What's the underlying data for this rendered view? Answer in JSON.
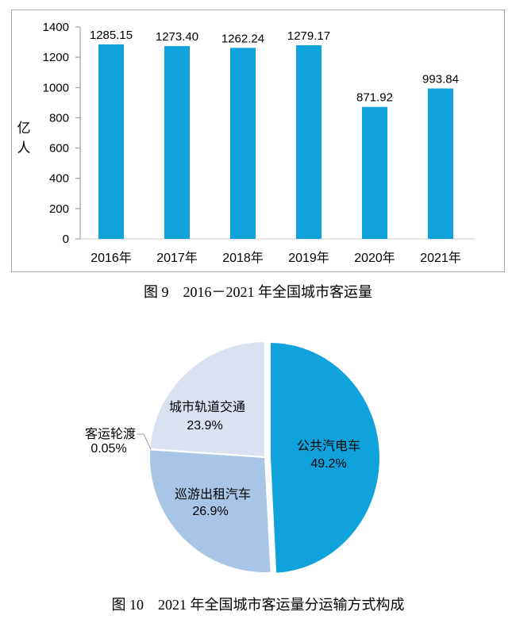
{
  "captions": {
    "figure9": "图 9　2016－2021 年全国城市客运量",
    "figure10": "图 10　2021 年全国城市客运量分运输方式构成"
  },
  "chart_data": [
    {
      "type": "bar",
      "title": "图 9 2016－2021 年全国城市客运量",
      "categories": [
        "2016年",
        "2017年",
        "2018年",
        "2019年",
        "2020年",
        "2021年"
      ],
      "values": [
        1285.15,
        1273.4,
        1262.24,
        1279.17,
        871.92,
        993.84
      ],
      "value_labels": [
        "1285.15",
        "1273.40",
        "1262.24",
        "1279.17",
        "871.92",
        "993.84"
      ],
      "ylabel": "亿人",
      "xlabel": "",
      "ylim": [
        0,
        1400
      ],
      "yticks": [
        0,
        200,
        400,
        600,
        800,
        1000,
        1200,
        1400
      ],
      "grid": false,
      "legend": "none",
      "bar_color": "#0fa2db",
      "frame_color": "#a6a6a6",
      "axis_color": "#909090",
      "baseline_color": "#c8c8c8"
    },
    {
      "type": "pie",
      "title": "图 10 2021 年全国城市客运量分运输方式构成",
      "start_angle_deg": 0,
      "direction": "clockwise",
      "slices": [
        {
          "name": "public-bus",
          "label": "公共汽电车",
          "value": 49.2,
          "pct_label": "49.2%",
          "color": "#0fa2db",
          "exploded": true,
          "label_outside": false
        },
        {
          "name": "cruising-taxi",
          "label": "巡游出租汽车",
          "value": 26.9,
          "pct_label": "26.9%",
          "color": "#a8c5e5",
          "exploded": false,
          "label_outside": false
        },
        {
          "name": "passenger-ferry",
          "label": "客运轮渡",
          "value": 0.05,
          "pct_label": "0.05%",
          "color": "#c3d4ec",
          "exploded": false,
          "label_outside": true
        },
        {
          "name": "urban-rail",
          "label": "城市轨道交通",
          "value": 23.9,
          "pct_label": "23.9%",
          "color": "#dae1f1",
          "exploded": false,
          "label_outside": false
        }
      ]
    }
  ]
}
